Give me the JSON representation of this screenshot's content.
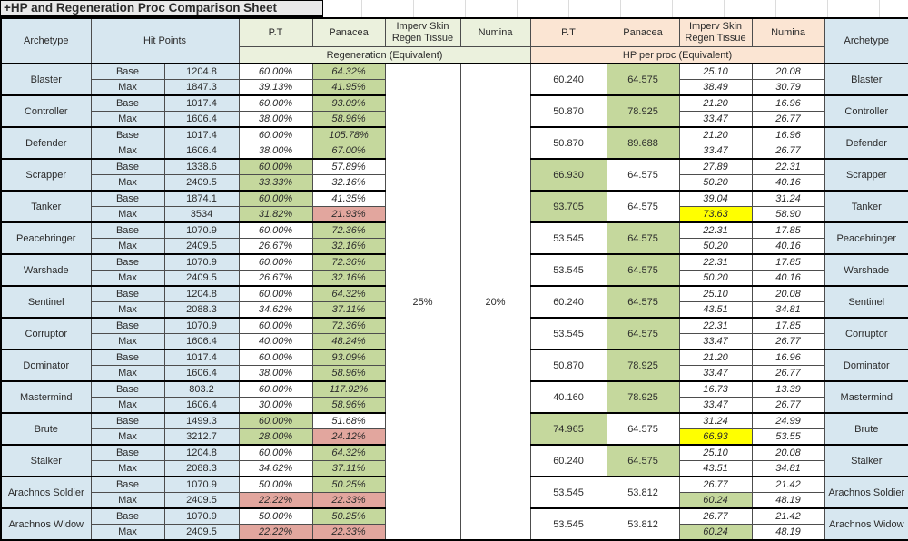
{
  "title": "+HP and Regeneration Proc Comparison Sheet",
  "colors": {
    "archetype_blue": "#d7e7f0",
    "regen_header_green": "#ebf1dd",
    "hp_header_peach": "#fbe5d3",
    "highlight_green": "#c5d89d",
    "highlight_red": "#e2a69e",
    "highlight_yellow": "#ffff00",
    "grid_line": "#4d4d4d"
  },
  "headers": {
    "archetype": "Archetype",
    "hit_points": "Hit Points",
    "pt": "P.T",
    "panacea": "Panacea",
    "imperv": "Imperv Skin Regen Tissue",
    "numina": "Numina",
    "regen_span": "Regeneration (Equivalent)",
    "hp_span": "HP per proc (Equivalent)"
  },
  "row_labels": [
    "Base",
    "Max"
  ],
  "merged": {
    "imperv_regen": "25%",
    "numina_regen": "20%"
  },
  "rows": [
    {
      "name": "Blaster",
      "hp": [
        "1204.8",
        "1847.3"
      ],
      "regen_pt": [
        [
          "60.00%",
          "w"
        ],
        [
          "39.13%",
          "w"
        ]
      ],
      "regen_pan": [
        [
          "64.32%",
          "g"
        ],
        [
          "41.95%",
          "g"
        ]
      ],
      "proc_pt": [
        "60.240",
        "w"
      ],
      "proc_pan": [
        "64.575",
        "g"
      ],
      "proc_imperv": [
        [
          "25.10",
          "w"
        ],
        [
          "38.49",
          "w"
        ]
      ],
      "proc_numina": [
        [
          "20.08",
          "w"
        ],
        [
          "30.79",
          "w"
        ]
      ]
    },
    {
      "name": "Controller",
      "hp": [
        "1017.4",
        "1606.4"
      ],
      "regen_pt": [
        [
          "60.00%",
          "w"
        ],
        [
          "38.00%",
          "w"
        ]
      ],
      "regen_pan": [
        [
          "93.09%",
          "g"
        ],
        [
          "58.96%",
          "g"
        ]
      ],
      "proc_pt": [
        "50.870",
        "w"
      ],
      "proc_pan": [
        "78.925",
        "g"
      ],
      "proc_imperv": [
        [
          "21.20",
          "w"
        ],
        [
          "33.47",
          "w"
        ]
      ],
      "proc_numina": [
        [
          "16.96",
          "w"
        ],
        [
          "26.77",
          "w"
        ]
      ]
    },
    {
      "name": "Defender",
      "hp": [
        "1017.4",
        "1606.4"
      ],
      "regen_pt": [
        [
          "60.00%",
          "w"
        ],
        [
          "38.00%",
          "w"
        ]
      ],
      "regen_pan": [
        [
          "105.78%",
          "g"
        ],
        [
          "67.00%",
          "g"
        ]
      ],
      "proc_pt": [
        "50.870",
        "w"
      ],
      "proc_pan": [
        "89.688",
        "g"
      ],
      "proc_imperv": [
        [
          "21.20",
          "w"
        ],
        [
          "33.47",
          "w"
        ]
      ],
      "proc_numina": [
        [
          "16.96",
          "w"
        ],
        [
          "26.77",
          "w"
        ]
      ]
    },
    {
      "name": "Scrapper",
      "hp": [
        "1338.6",
        "2409.5"
      ],
      "regen_pt": [
        [
          "60.00%",
          "g"
        ],
        [
          "33.33%",
          "g"
        ]
      ],
      "regen_pan": [
        [
          "57.89%",
          "w"
        ],
        [
          "32.16%",
          "w"
        ]
      ],
      "proc_pt": [
        "66.930",
        "g"
      ],
      "proc_pan": [
        "64.575",
        "w"
      ],
      "proc_imperv": [
        [
          "27.89",
          "w"
        ],
        [
          "50.20",
          "w"
        ]
      ],
      "proc_numina": [
        [
          "22.31",
          "w"
        ],
        [
          "40.16",
          "w"
        ]
      ]
    },
    {
      "name": "Tanker",
      "hp": [
        "1874.1",
        "3534"
      ],
      "regen_pt": [
        [
          "60.00%",
          "g"
        ],
        [
          "31.82%",
          "g"
        ]
      ],
      "regen_pan": [
        [
          "41.35%",
          "w"
        ],
        [
          "21.93%",
          "r"
        ]
      ],
      "proc_pt": [
        "93.705",
        "g"
      ],
      "proc_pan": [
        "64.575",
        "w"
      ],
      "proc_imperv": [
        [
          "39.04",
          "w"
        ],
        [
          "73.63",
          "y"
        ]
      ],
      "proc_numina": [
        [
          "31.24",
          "w"
        ],
        [
          "58.90",
          "w"
        ]
      ]
    },
    {
      "name": "Peacebringer",
      "hp": [
        "1070.9",
        "2409.5"
      ],
      "regen_pt": [
        [
          "60.00%",
          "w"
        ],
        [
          "26.67%",
          "w"
        ]
      ],
      "regen_pan": [
        [
          "72.36%",
          "g"
        ],
        [
          "32.16%",
          "g"
        ]
      ],
      "proc_pt": [
        "53.545",
        "w"
      ],
      "proc_pan": [
        "64.575",
        "g"
      ],
      "proc_imperv": [
        [
          "22.31",
          "w"
        ],
        [
          "50.20",
          "w"
        ]
      ],
      "proc_numina": [
        [
          "17.85",
          "w"
        ],
        [
          "40.16",
          "w"
        ]
      ]
    },
    {
      "name": "Warshade",
      "hp": [
        "1070.9",
        "2409.5"
      ],
      "regen_pt": [
        [
          "60.00%",
          "w"
        ],
        [
          "26.67%",
          "w"
        ]
      ],
      "regen_pan": [
        [
          "72.36%",
          "g"
        ],
        [
          "32.16%",
          "g"
        ]
      ],
      "proc_pt": [
        "53.545",
        "w"
      ],
      "proc_pan": [
        "64.575",
        "g"
      ],
      "proc_imperv": [
        [
          "22.31",
          "w"
        ],
        [
          "50.20",
          "w"
        ]
      ],
      "proc_numina": [
        [
          "17.85",
          "w"
        ],
        [
          "40.16",
          "w"
        ]
      ]
    },
    {
      "name": "Sentinel",
      "hp": [
        "1204.8",
        "2088.3"
      ],
      "regen_pt": [
        [
          "60.00%",
          "w"
        ],
        [
          "34.62%",
          "w"
        ]
      ],
      "regen_pan": [
        [
          "64.32%",
          "g"
        ],
        [
          "37.11%",
          "g"
        ]
      ],
      "proc_pt": [
        "60.240",
        "w"
      ],
      "proc_pan": [
        "64.575",
        "g"
      ],
      "proc_imperv": [
        [
          "25.10",
          "w"
        ],
        [
          "43.51",
          "w"
        ]
      ],
      "proc_numina": [
        [
          "20.08",
          "w"
        ],
        [
          "34.81",
          "w"
        ]
      ]
    },
    {
      "name": "Corruptor",
      "hp": [
        "1070.9",
        "1606.4"
      ],
      "regen_pt": [
        [
          "60.00%",
          "w"
        ],
        [
          "40.00%",
          "w"
        ]
      ],
      "regen_pan": [
        [
          "72.36%",
          "g"
        ],
        [
          "48.24%",
          "g"
        ]
      ],
      "proc_pt": [
        "53.545",
        "w"
      ],
      "proc_pan": [
        "64.575",
        "g"
      ],
      "proc_imperv": [
        [
          "22.31",
          "w"
        ],
        [
          "33.47",
          "w"
        ]
      ],
      "proc_numina": [
        [
          "17.85",
          "w"
        ],
        [
          "26.77",
          "w"
        ]
      ]
    },
    {
      "name": "Dominator",
      "hp": [
        "1017.4",
        "1606.4"
      ],
      "regen_pt": [
        [
          "60.00%",
          "w"
        ],
        [
          "38.00%",
          "w"
        ]
      ],
      "regen_pan": [
        [
          "93.09%",
          "g"
        ],
        [
          "58.96%",
          "g"
        ]
      ],
      "proc_pt": [
        "50.870",
        "w"
      ],
      "proc_pan": [
        "78.925",
        "g"
      ],
      "proc_imperv": [
        [
          "21.20",
          "w"
        ],
        [
          "33.47",
          "w"
        ]
      ],
      "proc_numina": [
        [
          "16.96",
          "w"
        ],
        [
          "26.77",
          "w"
        ]
      ]
    },
    {
      "name": "Mastermind",
      "hp": [
        "803.2",
        "1606.4"
      ],
      "regen_pt": [
        [
          "60.00%",
          "w"
        ],
        [
          "30.00%",
          "w"
        ]
      ],
      "regen_pan": [
        [
          "117.92%",
          "g"
        ],
        [
          "58.96%",
          "g"
        ]
      ],
      "proc_pt": [
        "40.160",
        "w"
      ],
      "proc_pan": [
        "78.925",
        "g"
      ],
      "proc_imperv": [
        [
          "16.73",
          "w"
        ],
        [
          "33.47",
          "w"
        ]
      ],
      "proc_numina": [
        [
          "13.39",
          "w"
        ],
        [
          "26.77",
          "w"
        ]
      ]
    },
    {
      "name": "Brute",
      "hp": [
        "1499.3",
        "3212.7"
      ],
      "regen_pt": [
        [
          "60.00%",
          "g"
        ],
        [
          "28.00%",
          "g"
        ]
      ],
      "regen_pan": [
        [
          "51.68%",
          "w"
        ],
        [
          "24.12%",
          "r"
        ]
      ],
      "proc_pt": [
        "74.965",
        "g"
      ],
      "proc_pan": [
        "64.575",
        "w"
      ],
      "proc_imperv": [
        [
          "31.24",
          "w"
        ],
        [
          "66.93",
          "y"
        ]
      ],
      "proc_numina": [
        [
          "24.99",
          "w"
        ],
        [
          "53.55",
          "w"
        ]
      ]
    },
    {
      "name": "Stalker",
      "hp": [
        "1204.8",
        "2088.3"
      ],
      "regen_pt": [
        [
          "60.00%",
          "w"
        ],
        [
          "34.62%",
          "w"
        ]
      ],
      "regen_pan": [
        [
          "64.32%",
          "g"
        ],
        [
          "37.11%",
          "g"
        ]
      ],
      "proc_pt": [
        "60.240",
        "w"
      ],
      "proc_pan": [
        "64.575",
        "g"
      ],
      "proc_imperv": [
        [
          "25.10",
          "w"
        ],
        [
          "43.51",
          "w"
        ]
      ],
      "proc_numina": [
        [
          "20.08",
          "w"
        ],
        [
          "34.81",
          "w"
        ]
      ]
    },
    {
      "name": "Arachnos Soldier",
      "hp": [
        "1070.9",
        "2409.5"
      ],
      "regen_pt": [
        [
          "50.00%",
          "w"
        ],
        [
          "22.22%",
          "r"
        ]
      ],
      "regen_pan": [
        [
          "50.25%",
          "g"
        ],
        [
          "22.33%",
          "r"
        ]
      ],
      "proc_pt": [
        "53.545",
        "w"
      ],
      "proc_pan": [
        "53.812",
        "w"
      ],
      "proc_imperv": [
        [
          "26.77",
          "w"
        ],
        [
          "60.24",
          "g"
        ]
      ],
      "proc_numina": [
        [
          "21.42",
          "w"
        ],
        [
          "48.19",
          "w"
        ]
      ]
    },
    {
      "name": "Arachnos Widow",
      "hp": [
        "1070.9",
        "2409.5"
      ],
      "regen_pt": [
        [
          "50.00%",
          "w"
        ],
        [
          "22.22%",
          "r"
        ]
      ],
      "regen_pan": [
        [
          "50.25%",
          "g"
        ],
        [
          "22.33%",
          "r"
        ]
      ],
      "proc_pt": [
        "53.545",
        "w"
      ],
      "proc_pan": [
        "53.812",
        "w"
      ],
      "proc_imperv": [
        [
          "26.77",
          "w"
        ],
        [
          "60.24",
          "g"
        ]
      ],
      "proc_numina": [
        [
          "21.42",
          "w"
        ],
        [
          "48.19",
          "w"
        ]
      ]
    }
  ]
}
